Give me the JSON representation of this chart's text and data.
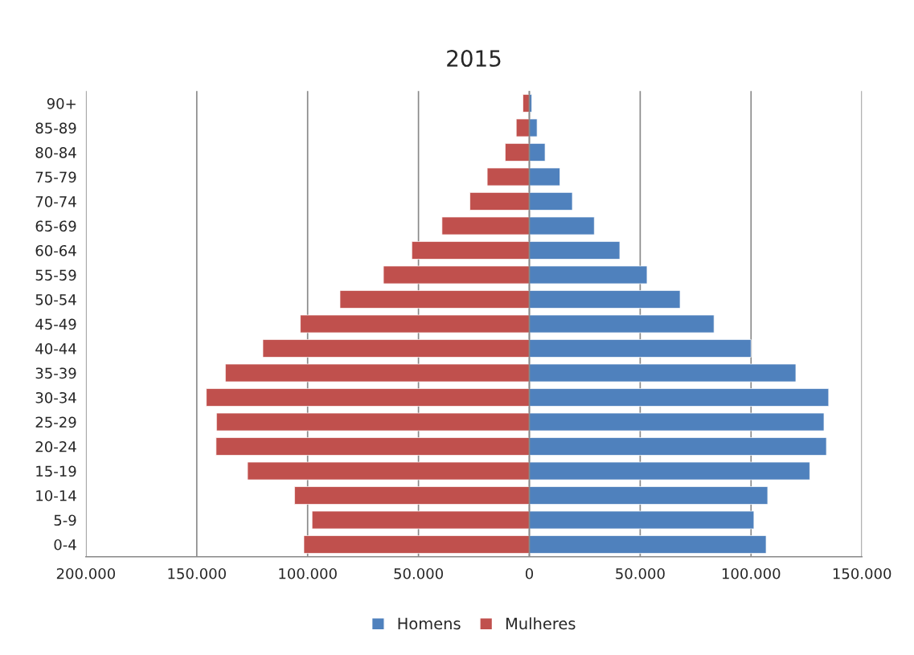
{
  "chart_data": {
    "type": "bar",
    "title": "2015",
    "orientation": "horizontal",
    "stacked": true,
    "categories": [
      "90+",
      "85-89",
      "80-84",
      "75-79",
      "70-74",
      "65-69",
      "60-64",
      "55-59",
      "50-54",
      "45-49",
      "40-44",
      "35-39",
      "30-34",
      "25-29",
      "20-24",
      "15-19",
      "10-14",
      "5-9",
      "0-4"
    ],
    "series": [
      {
        "name": "Homens",
        "color": "#4f81bd",
        "values": [
          1100,
          3500,
          7100,
          13800,
          19400,
          29300,
          40800,
          53100,
          68000,
          83300,
          100000,
          120200,
          135000,
          132900,
          134000,
          126500,
          107500,
          101300,
          106800
        ]
      },
      {
        "name": "Mulheres",
        "color": "#c0504d",
        "values": [
          -2900,
          -5900,
          -10900,
          -19000,
          -26800,
          -39400,
          -53000,
          -65800,
          -85400,
          -103300,
          -120200,
          -137100,
          -145700,
          -141100,
          -141300,
          -127100,
          -105900,
          -98000,
          -101700
        ]
      }
    ],
    "xlim": [
      -200000,
      150000
    ],
    "xticks": [
      {
        "value": -200000,
        "label": "200.000"
      },
      {
        "value": -150000,
        "label": "150.000"
      },
      {
        "value": -100000,
        "label": "100.000"
      },
      {
        "value": -50000,
        "label": "50.000"
      },
      0,
      {
        "value": 50000,
        "label": "50.000"
      },
      {
        "value": 100000,
        "label": "100.000"
      },
      {
        "value": 150000,
        "label": "150.000"
      }
    ],
    "grid": "x",
    "legend": "bottom"
  }
}
